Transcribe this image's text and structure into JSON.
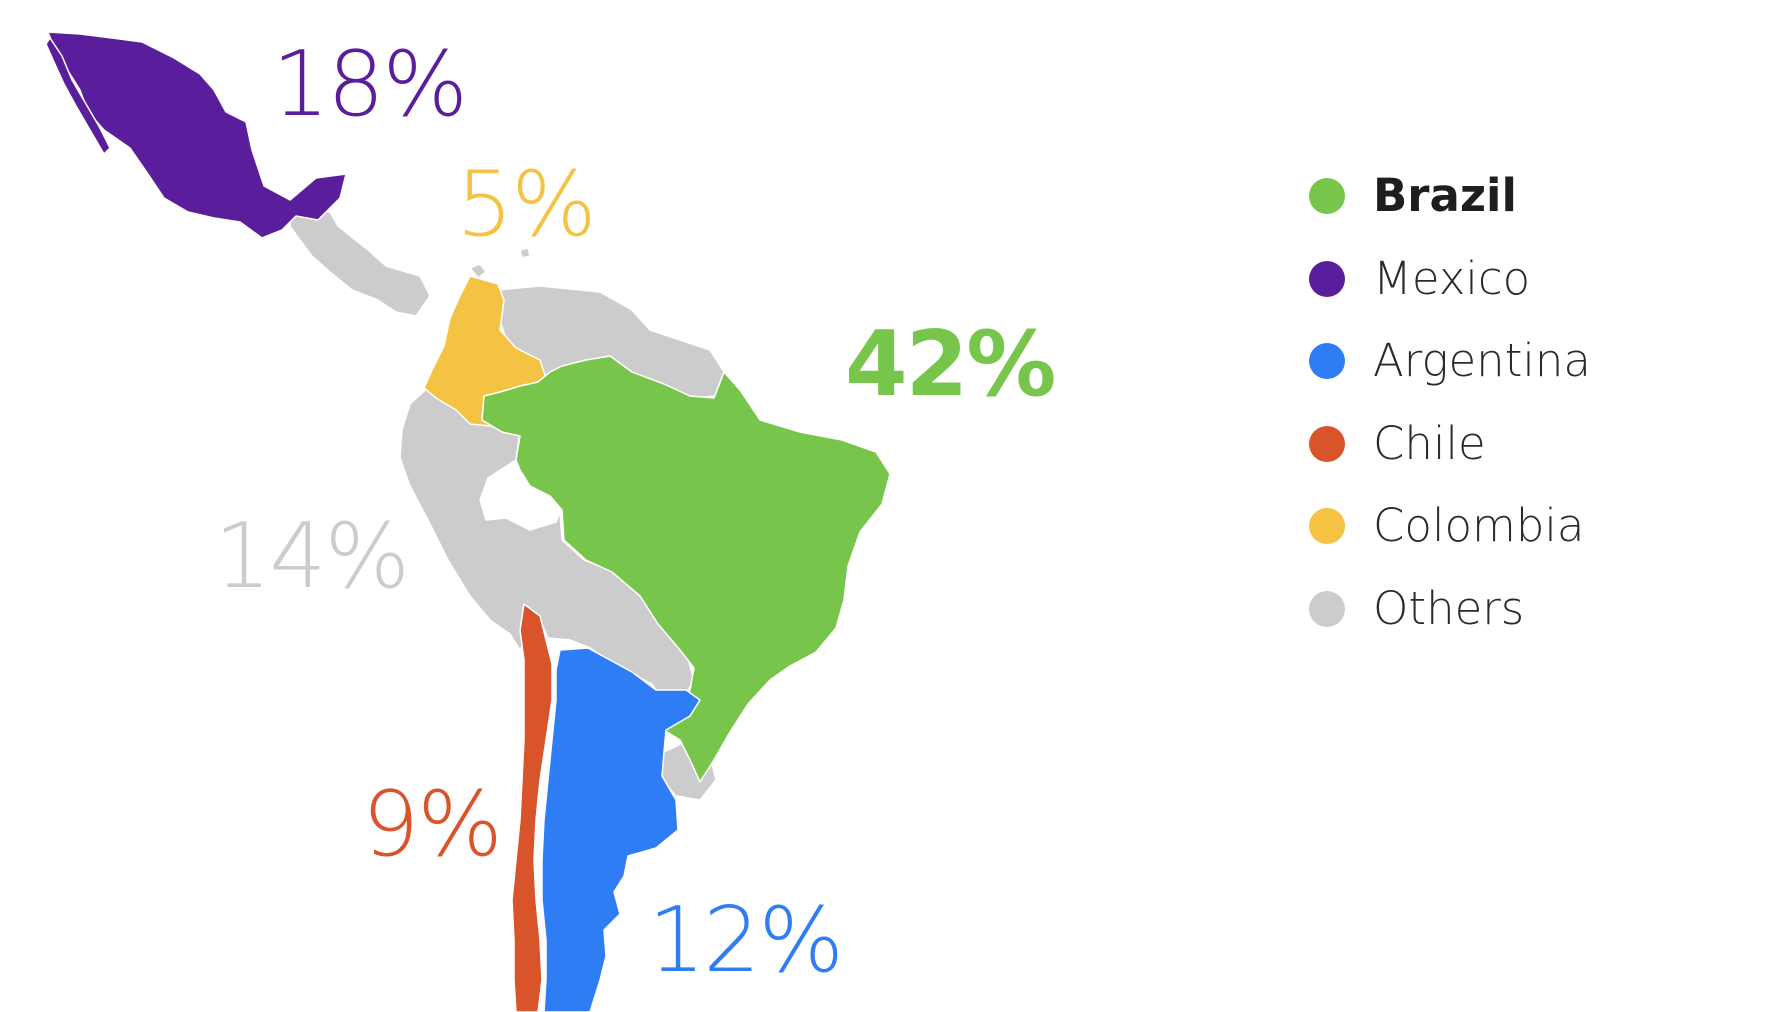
{
  "countries": {
    "mexico": {
      "name": "Mexico",
      "share": "18%",
      "color": "#5a1e9c"
    },
    "colombia": {
      "name": "Colombia",
      "share": "5%",
      "color": "#f5c343"
    },
    "brazil": {
      "name": "Brazil",
      "share": "42%",
      "color": "#78c54b"
    },
    "others": {
      "name": "Others",
      "share": "14%",
      "color": "#cccccc"
    },
    "chile": {
      "name": "Chile",
      "share": "9%",
      "color": "#d9542a"
    },
    "argentina": {
      "name": "Argentina",
      "share": "12%",
      "color": "#2f7df4"
    }
  },
  "legend": [
    {
      "key": "brazil",
      "label": "Brazil",
      "color": "#78c54b",
      "emphasis": true
    },
    {
      "key": "mexico",
      "label": "Mexico",
      "color": "#5a1e9c",
      "emphasis": false
    },
    {
      "key": "argentina",
      "label": "Argentina",
      "color": "#2f7df4",
      "emphasis": false
    },
    {
      "key": "chile",
      "label": "Chile",
      "color": "#d9542a",
      "emphasis": false
    },
    {
      "key": "colombia",
      "label": "Colombia",
      "color": "#f5c343",
      "emphasis": false
    },
    {
      "key": "others",
      "label": "Others",
      "color": "#cccccc",
      "emphasis": false
    }
  ]
}
